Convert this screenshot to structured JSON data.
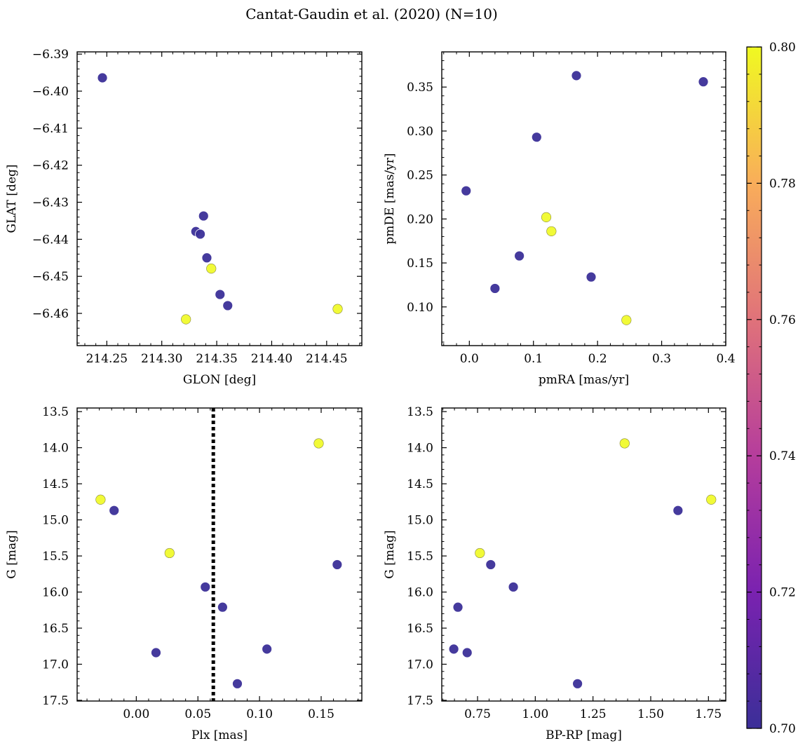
{
  "figure": {
    "title": "Cantat-Gaudin et al. (2020) (N=10)"
  },
  "colors": {
    "low": "#3b2f98",
    "high": "#f0f921",
    "line": "#000000"
  },
  "chart_data": [
    {
      "type": "scatter",
      "id": "pos",
      "xlabel": "GLON [deg]",
      "ylabel": "GLAT [deg]",
      "xlim": [
        214.223,
        214.482
      ],
      "ylim": [
        -6.4687,
        -6.3894
      ],
      "xticks": [
        214.25,
        214.3,
        214.35,
        214.4,
        214.45
      ],
      "xtick_labels": [
        "214.25",
        "214.30",
        "214.35",
        "214.40",
        "214.45"
      ],
      "yticks": [
        -6.39,
        -6.4,
        -6.41,
        -6.42,
        -6.43,
        -6.44,
        -6.45,
        -6.46
      ],
      "ytick_labels": [
        "−6.39",
        "−6.40",
        "−6.41",
        "−6.42",
        "−6.43",
        "−6.44",
        "−6.45",
        "−6.46"
      ],
      "points": [
        {
          "x": 214.246,
          "y": -6.3964,
          "c": 0.7
        },
        {
          "x": 214.338,
          "y": -6.4337,
          "c": 0.7
        },
        {
          "x": 214.331,
          "y": -6.4379,
          "c": 0.7
        },
        {
          "x": 214.335,
          "y": -6.4386,
          "c": 0.7
        },
        {
          "x": 214.341,
          "y": -6.445,
          "c": 0.7
        },
        {
          "x": 214.353,
          "y": -6.4549,
          "c": 0.7
        },
        {
          "x": 214.36,
          "y": -6.4579,
          "c": 0.7
        },
        {
          "x": 214.345,
          "y": -6.4479,
          "c": 0.8
        },
        {
          "x": 214.322,
          "y": -6.4616,
          "c": 0.8
        },
        {
          "x": 214.46,
          "y": -6.4588,
          "c": 0.8
        }
      ]
    },
    {
      "type": "scatter",
      "id": "pm",
      "xlabel": "pmRA [mas/yr]",
      "ylabel": "pmDE [mas/yr]",
      "xlim": [
        -0.043,
        0.4
      ],
      "ylim": [
        0.056,
        0.39
      ],
      "xticks": [
        0.0,
        0.1,
        0.2,
        0.3,
        0.4
      ],
      "xtick_labels": [
        "0.0",
        "0.1",
        "0.2",
        "0.3",
        "0.4"
      ],
      "yticks": [
        0.1,
        0.15,
        0.2,
        0.25,
        0.3,
        0.35
      ],
      "ytick_labels": [
        "0.10",
        "0.15",
        "0.20",
        "0.25",
        "0.30",
        "0.35"
      ],
      "points": [
        {
          "x": -0.005,
          "y": 0.232,
          "c": 0.7
        },
        {
          "x": 0.04,
          "y": 0.121,
          "c": 0.7
        },
        {
          "x": 0.078,
          "y": 0.158,
          "c": 0.7
        },
        {
          "x": 0.105,
          "y": 0.293,
          "c": 0.7
        },
        {
          "x": 0.167,
          "y": 0.363,
          "c": 0.7
        },
        {
          "x": 0.19,
          "y": 0.134,
          "c": 0.7
        },
        {
          "x": 0.365,
          "y": 0.356,
          "c": 0.7
        },
        {
          "x": 0.12,
          "y": 0.202,
          "c": 0.8
        },
        {
          "x": 0.128,
          "y": 0.186,
          "c": 0.8
        },
        {
          "x": 0.245,
          "y": 0.085,
          "c": 0.8
        }
      ]
    },
    {
      "type": "scatter",
      "id": "plx",
      "xlabel": "Plx [mas]",
      "ylabel": "G [mag]",
      "xlim": [
        -0.048,
        0.183
      ],
      "ylim": [
        17.51,
        13.45
      ],
      "xticks": [
        0.0,
        0.05,
        0.1,
        0.15
      ],
      "xtick_labels": [
        "0.00",
        "0.05",
        "0.10",
        "0.15"
      ],
      "yticks": [
        13.5,
        14.0,
        14.5,
        15.0,
        15.5,
        16.0,
        16.5,
        17.0,
        17.5
      ],
      "ytick_labels": [
        "13.5",
        "14.0",
        "14.5",
        "15.0",
        "15.5",
        "16.0",
        "16.5",
        "17.0",
        "17.5"
      ],
      "vline": 0.0625,
      "points": [
        {
          "x": -0.018,
          "y": 14.87,
          "c": 0.7
        },
        {
          "x": 0.016,
          "y": 16.84,
          "c": 0.7
        },
        {
          "x": 0.056,
          "y": 15.93,
          "c": 0.7
        },
        {
          "x": 0.07,
          "y": 16.21,
          "c": 0.7
        },
        {
          "x": 0.082,
          "y": 17.27,
          "c": 0.7
        },
        {
          "x": 0.106,
          "y": 16.79,
          "c": 0.7
        },
        {
          "x": 0.163,
          "y": 15.62,
          "c": 0.7
        },
        {
          "x": -0.029,
          "y": 14.72,
          "c": 0.8
        },
        {
          "x": 0.027,
          "y": 15.46,
          "c": 0.8
        },
        {
          "x": 0.148,
          "y": 13.94,
          "c": 0.8
        }
      ]
    },
    {
      "type": "scatter",
      "id": "cmd",
      "xlabel": "BP-RP [mag]",
      "ylabel": "G [mag]",
      "xlim": [
        0.595,
        1.825
      ],
      "ylim": [
        17.51,
        13.45
      ],
      "xticks": [
        0.75,
        1.0,
        1.25,
        1.5,
        1.75
      ],
      "xtick_labels": [
        "0.75",
        "1.00",
        "1.25",
        "1.50",
        "1.75"
      ],
      "yticks": [
        13.5,
        14.0,
        14.5,
        15.0,
        15.5,
        16.0,
        16.5,
        17.0,
        17.5
      ],
      "ytick_labels": [
        "13.5",
        "14.0",
        "14.5",
        "15.0",
        "15.5",
        "16.0",
        "16.5",
        "17.0",
        "17.5"
      ],
      "points": [
        {
          "x": 0.647,
          "y": 16.79,
          "c": 0.7
        },
        {
          "x": 0.665,
          "y": 16.21,
          "c": 0.7
        },
        {
          "x": 0.705,
          "y": 16.84,
          "c": 0.7
        },
        {
          "x": 0.807,
          "y": 15.62,
          "c": 0.7
        },
        {
          "x": 0.905,
          "y": 15.93,
          "c": 0.7
        },
        {
          "x": 1.183,
          "y": 17.27,
          "c": 0.7
        },
        {
          "x": 1.618,
          "y": 14.87,
          "c": 0.7
        },
        {
          "x": 0.76,
          "y": 15.46,
          "c": 0.8
        },
        {
          "x": 1.387,
          "y": 13.94,
          "c": 0.8
        },
        {
          "x": 1.762,
          "y": 14.72,
          "c": 0.8
        }
      ]
    }
  ],
  "colorbar": {
    "min": 0.7,
    "max": 0.8,
    "ticks": [
      0.7,
      0.72,
      0.74,
      0.76,
      0.78,
      0.8
    ],
    "tick_labels": [
      "0.70",
      "0.72",
      "0.74",
      "0.76",
      "0.78",
      "0.80"
    ]
  }
}
